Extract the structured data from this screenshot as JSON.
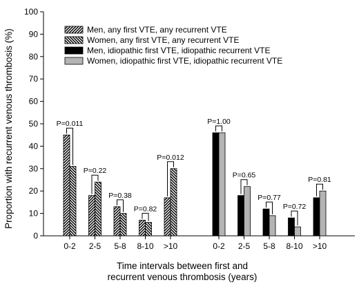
{
  "chart_data": {
    "type": "bar",
    "ylabel": "Proportion with recurrent venous thrombosis (%)",
    "xlabel_lines": [
      "Time intervals between first and",
      "recurrent venous thrombosis (years)"
    ],
    "ylim": [
      0,
      100
    ],
    "yticks": [
      0,
      10,
      20,
      30,
      40,
      50,
      60,
      70,
      80,
      90,
      100
    ],
    "grid": false,
    "legend_position": "top-left",
    "groups": [
      {
        "categories": [
          "0-2",
          "2-5",
          "5-8",
          "8-10",
          ">10"
        ],
        "series": [
          {
            "name": "Men, any first VTE, any recurrent VTE",
            "fill": "hatch-forward",
            "values": [
              45,
              18,
              13,
              7,
              17
            ]
          },
          {
            "name": "Women, any first VTE, any recurrent VTE",
            "fill": "hatch-back",
            "values": [
              31,
              24,
              10,
              6,
              30
            ]
          }
        ],
        "p_values": [
          "P=0.011",
          "P=0.22",
          "P=0.38",
          "P=0.82",
          "P=0.012"
        ]
      },
      {
        "categories": [
          "0-2",
          "2-5",
          "5-8",
          "8-10",
          ">10"
        ],
        "series": [
          {
            "name": "Men, idiopathic first VTE, idiopathic recurrent VTE",
            "fill": "#000000",
            "values": [
              46,
              18,
              12,
              8,
              17
            ]
          },
          {
            "name": "Women, idiopathic first VTE, idiopathic recurrent VTE",
            "fill": "#b4b4b4",
            "values": [
              46,
              22,
              9,
              4,
              20
            ]
          }
        ],
        "p_values": [
          "P=1.00",
          "P=0.65",
          "P=0.77",
          "P=0.72",
          "P=0.81"
        ]
      }
    ],
    "legend": [
      {
        "label": "Men, any first VTE, any recurrent VTE",
        "fill": "hatch-forward"
      },
      {
        "label": "Women, any first VTE, any recurrent VTE",
        "fill": "hatch-back"
      },
      {
        "label": "Men, idiopathic first VTE, idiopathic recurrent VTE",
        "fill": "#000000"
      },
      {
        "label": "Women, idiopathic first VTE, idiopathic recurrent VTE",
        "fill": "#b4b4b4"
      }
    ]
  }
}
